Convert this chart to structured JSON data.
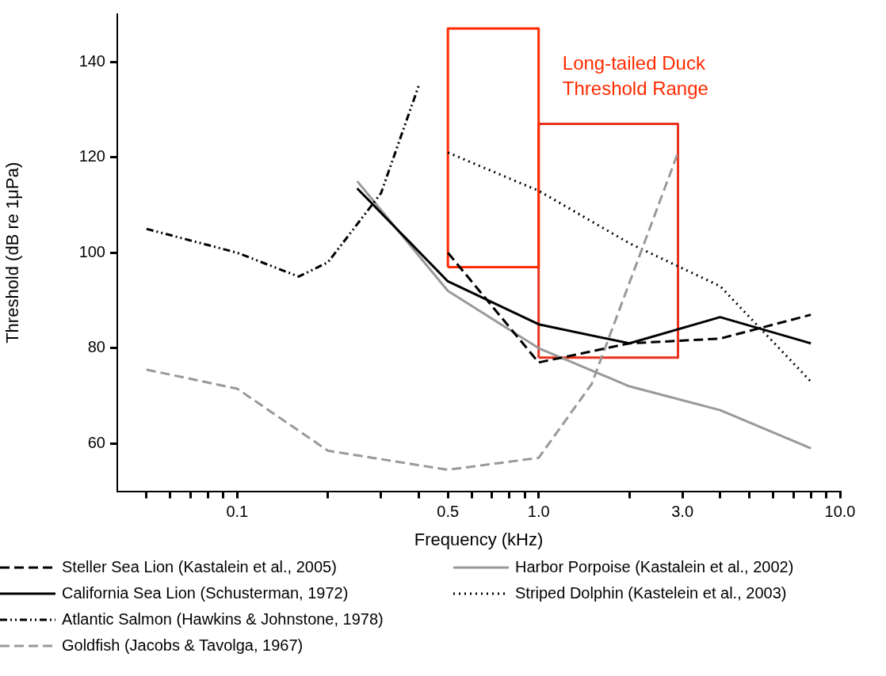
{
  "chart_data": {
    "type": "line",
    "xlabel": "Frequency (kHz)",
    "ylabel": "Threshold (dB re 1μPa)",
    "log": "x",
    "grid": false,
    "legend": "bottom",
    "marker": "none",
    "xlim": [
      0.04,
      10
    ],
    "xticks": [
      {
        "value": 0.05,
        "label": null
      },
      {
        "value": 0.06,
        "label": null
      },
      {
        "value": 0.07,
        "label": null
      },
      {
        "value": 0.08,
        "label": null
      },
      {
        "value": 0.09,
        "label": null
      },
      {
        "value": 0.1,
        "label": "0.1"
      },
      {
        "value": 0.2,
        "label": null
      },
      {
        "value": 0.3,
        "label": null
      },
      {
        "value": 0.4,
        "label": null
      },
      {
        "value": 0.5,
        "label": "0.5"
      },
      {
        "value": 0.6,
        "label": null
      },
      {
        "value": 0.7,
        "label": null
      },
      {
        "value": 0.8,
        "label": null
      },
      {
        "value": 0.9,
        "label": null
      },
      {
        "value": 1,
        "label": "1.0"
      },
      {
        "value": 2,
        "label": null
      },
      {
        "value": 3,
        "label": "3.0"
      },
      {
        "value": 4,
        "label": null
      },
      {
        "value": 5,
        "label": null
      },
      {
        "value": 6,
        "label": null
      },
      {
        "value": 7,
        "label": null
      },
      {
        "value": 8,
        "label": null
      },
      {
        "value": 9,
        "label": null
      },
      {
        "value": 10,
        "label": "10.0"
      }
    ],
    "ylim": [
      50,
      150
    ],
    "yticks": [
      60,
      80,
      100,
      120,
      140
    ],
    "annotations": [
      "Long-tailed Duck\nThreshold Range"
    ],
    "series": [
      {
        "name": "Steller Sea Lion (Kastalein et al., 2005)",
        "color": "#000000",
        "line_style": "dashed",
        "x": [
          0.5,
          1,
          2,
          4,
          8
        ],
        "values": [
          100,
          77,
          81,
          82,
          87
        ]
      },
      {
        "name": "California Sea Lion (Schusterman, 1972)",
        "color": "#000000",
        "line_style": "solid",
        "x": [
          0.25,
          0.5,
          1,
          2,
          4,
          8
        ],
        "values": [
          113.5,
          94,
          85,
          81,
          86.5,
          81
        ]
      },
      {
        "name": "Atlantic Salmon (Hawkins & Johnstone, 1978)",
        "color": "#000000",
        "line_style": "dashdot",
        "x": [
          0.05,
          0.1,
          0.16,
          0.2,
          0.3,
          0.4
        ],
        "values": [
          105,
          100,
          95,
          98,
          112.5,
          135
        ]
      },
      {
        "name": "Goldfish (Jacobs & Tavolga, 1967)",
        "color": "#999999",
        "line_style": "dashed",
        "x": [
          0.05,
          0.1,
          0.2,
          0.5,
          1,
          1.5,
          2.9
        ],
        "values": [
          75.5,
          71.5,
          58.5,
          54.5,
          57,
          72.5,
          121
        ]
      },
      {
        "name": "Harbor Porpoise (Kastalein et al., 2002)",
        "color": "#999999",
        "line_style": "solid",
        "x": [
          0.25,
          0.5,
          1,
          2,
          4,
          8
        ],
        "values": [
          115,
          92,
          80,
          72,
          67,
          59
        ]
      },
      {
        "name": "Striped Dolphin (Kastelein et al., 2003)",
        "color": "#000000",
        "line_style": "dotted",
        "x": [
          0.5,
          1,
          2,
          4,
          8
        ],
        "values": [
          121,
          113,
          102,
          93,
          73
        ]
      },
      {
        "color": "#ff2a00",
        "line_style": "solid",
        "x": [
          0.5,
          0.5,
          1,
          1
        ],
        "values": [
          97,
          147,
          147,
          97
        ]
      },
      {
        "color": "#ff2a00",
        "line_style": "solid",
        "x": [
          0.5,
          1
        ],
        "values": [
          97,
          97
        ]
      },
      {
        "color": "#e8321e",
        "line_style": "solid",
        "x": [
          1,
          1,
          2.9,
          2.9
        ],
        "values": [
          78,
          127,
          127,
          78
        ]
      },
      {
        "color": "#e8321e",
        "line_style": "solid",
        "x": [
          1,
          2.9
        ],
        "values": [
          78,
          78
        ]
      }
    ]
  }
}
